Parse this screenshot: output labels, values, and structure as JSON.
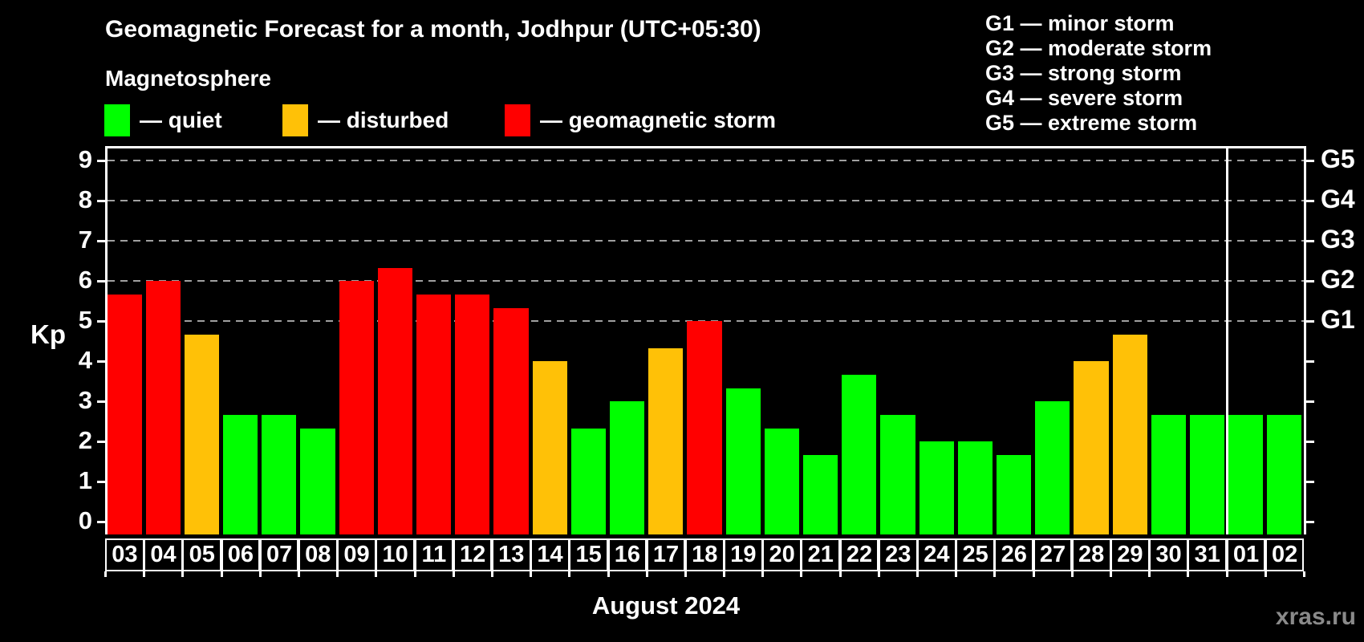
{
  "title": "Geomagnetic Forecast for a month, Jodhpur (UTC+05:30)",
  "subtitle": "Magnetosphere",
  "bar_legend": {
    "items": [
      {
        "key": "quiet",
        "label": "— quiet"
      },
      {
        "key": "disturbed",
        "label": "— disturbed"
      },
      {
        "key": "storm",
        "label": "— geomagnetic storm"
      }
    ]
  },
  "storm_legend": {
    "items": [
      "G1 — minor storm",
      "G2 — moderate storm",
      "G3 — strong storm",
      "G4 — severe storm",
      "G5 — extreme storm"
    ]
  },
  "colors": {
    "quiet": "#00ff00",
    "disturbed": "#ffc107",
    "storm": "#ff0000",
    "grid": "#a0a0a0",
    "axis": "#ffffff",
    "watermark": "#8a8a8a",
    "background": "#000000"
  },
  "y_axis": {
    "label": "Kp",
    "ticks": [
      0,
      1,
      2,
      3,
      4,
      5,
      6,
      7,
      8,
      9
    ]
  },
  "right_axis": {
    "labels": [
      {
        "kp": 5,
        "label": "G1"
      },
      {
        "kp": 6,
        "label": "G2"
      },
      {
        "kp": 7,
        "label": "G3"
      },
      {
        "kp": 8,
        "label": "G4"
      },
      {
        "kp": 9,
        "label": "G5"
      }
    ]
  },
  "x_axis": {
    "month_label": "August 2024"
  },
  "watermark": "xras.ru",
  "chart_data": {
    "type": "bar",
    "title": "Geomagnetic Forecast for a month, Jodhpur (UTC+05:30)",
    "ylabel": "Kp",
    "ylim": [
      0,
      9
    ],
    "grid": "dashed horizontal at Kp 5-9 (G1-G5)",
    "legend_position": "top-left",
    "categories": [
      "03",
      "04",
      "05",
      "06",
      "07",
      "08",
      "09",
      "10",
      "11",
      "12",
      "13",
      "14",
      "15",
      "16",
      "17",
      "18",
      "19",
      "20",
      "21",
      "22",
      "23",
      "24",
      "25",
      "26",
      "27",
      "28",
      "29",
      "30",
      "31",
      "01",
      "02"
    ],
    "values": [
      5.67,
      6,
      4.67,
      2.67,
      2.67,
      2.33,
      6,
      6.33,
      5.67,
      5.67,
      5.33,
      4,
      2.33,
      3,
      4.33,
      5,
      3.33,
      2.33,
      1.67,
      3.67,
      2.67,
      2,
      2,
      1.67,
      3,
      4,
      4.67,
      2.67,
      2.67,
      2.67,
      2.67
    ],
    "statuses": [
      "storm",
      "storm",
      "disturbed",
      "quiet",
      "quiet",
      "quiet",
      "storm",
      "storm",
      "storm",
      "storm",
      "storm",
      "disturbed",
      "quiet",
      "quiet",
      "disturbed",
      "storm",
      "quiet",
      "quiet",
      "quiet",
      "quiet",
      "quiet",
      "quiet",
      "quiet",
      "quiet",
      "quiet",
      "disturbed",
      "disturbed",
      "quiet",
      "quiet",
      "quiet",
      "quiet"
    ],
    "month_separator_after": "31",
    "gridlines_at": [
      5,
      6,
      7,
      8,
      9
    ]
  }
}
